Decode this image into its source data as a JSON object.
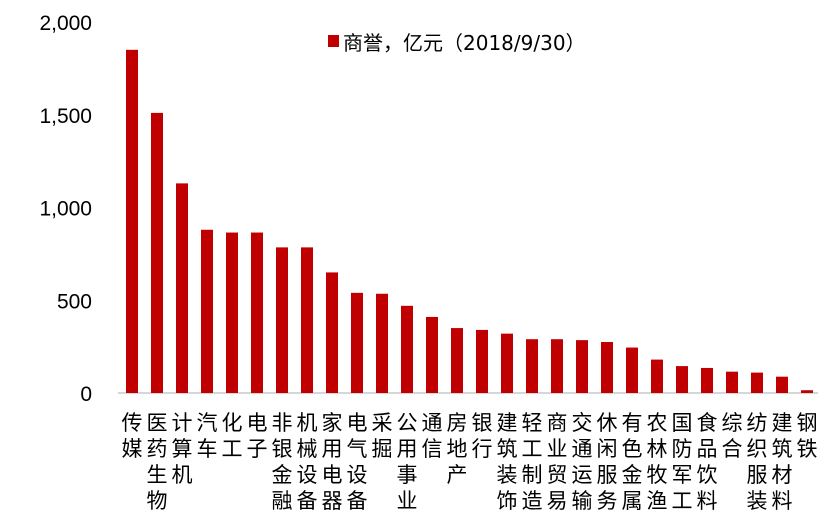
{
  "chart_data": {
    "type": "bar",
    "title": "",
    "xlabel": "",
    "ylabel": "",
    "ylim": [
      0,
      2000
    ],
    "yticks": [
      "2,000",
      "1,500",
      "1,000",
      "500",
      "0"
    ],
    "ytick_values": [
      2000,
      1500,
      1000,
      500,
      0
    ],
    "grid": false,
    "legend_position": "top",
    "categories": [
      "传媒",
      "医药生物",
      "计算机",
      "汽车",
      "化工",
      "电子",
      "非银金融",
      "机械设备",
      "家用电器",
      "电气设备",
      "采掘",
      "公用事业",
      "通信",
      "房地产",
      "银行",
      "建筑装饰",
      "轻工制造",
      "商业贸易",
      "交通运输",
      "休闲服务",
      "有色金属",
      "农林牧渔",
      "国防军工",
      "食品饮料",
      "综合",
      "纺织服装",
      "建筑材料",
      "钢铁"
    ],
    "series": [
      {
        "name": "商誉，亿元（2018/9/30）",
        "color": "#C00000",
        "values": [
          1850,
          1510,
          1130,
          880,
          865,
          865,
          785,
          785,
          650,
          540,
          535,
          470,
          410,
          350,
          340,
          320,
          290,
          290,
          285,
          275,
          245,
          180,
          145,
          135,
          115,
          110,
          88,
          15
        ]
      }
    ]
  }
}
